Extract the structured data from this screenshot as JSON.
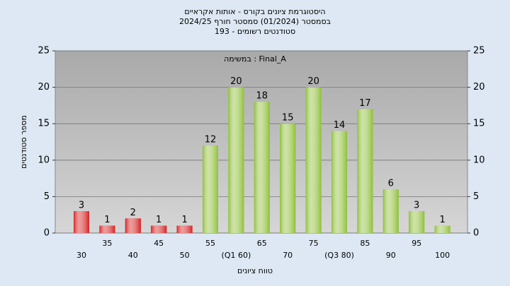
{
  "chart_data": {
    "type": "bar",
    "title": [
      "היסטוגרמת ציונים בקורס - אותות אקראיים",
      "בסמסטר (01/2024) סמסטר חורף 2024/25",
      "סטודנטים רשומים - 193"
    ],
    "annotation": "במשימה : Final_A",
    "x_label": "טווח ציונים",
    "y_label": "מספר סטודנטים",
    "categories": [
      "30",
      "35",
      "40",
      "45",
      "50",
      "55",
      "(Q1 60)",
      "65",
      "70",
      "75",
      "(Q3 80)",
      "85",
      "90",
      "95",
      "100"
    ],
    "values": [
      3,
      1,
      2,
      1,
      1,
      12,
      20,
      18,
      15,
      20,
      14,
      17,
      6,
      3,
      1
    ],
    "colors": [
      "#d42020",
      "#d42020",
      "#d42020",
      "#d42020",
      "#d42020",
      "#8fbf3a",
      "#8fbf3a",
      "#8fbf3a",
      "#8fbf3a",
      "#8fbf3a",
      "#8fbf3a",
      "#8fbf3a",
      "#8fbf3a",
      "#8fbf3a",
      "#8fbf3a"
    ],
    "ylim": [
      0,
      25
    ],
    "yticks": [
      0,
      5,
      10,
      15,
      20,
      25
    ],
    "y2lim": [
      0,
      25
    ],
    "y2ticks": [
      0,
      5,
      10,
      15,
      20,
      25
    ],
    "grid": true
  }
}
